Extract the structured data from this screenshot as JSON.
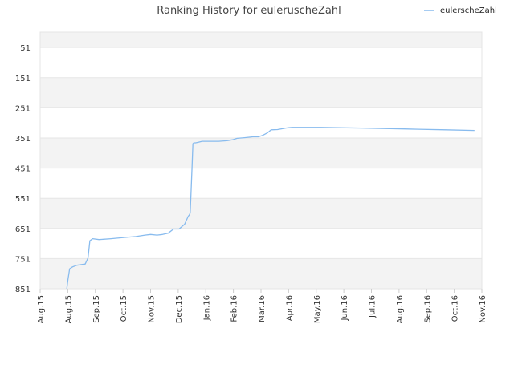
{
  "chart_data": {
    "type": "line",
    "title": "Ranking History for euleruscheZahl",
    "xlabel": "",
    "ylabel": "",
    "y_reversed": true,
    "ylim": [
      851,
      0
    ],
    "grid": true,
    "legend_position": "top-right",
    "band_colors": [
      "#f3f3f3",
      "#ffffff"
    ],
    "y_ticks": [
      51,
      151,
      251,
      351,
      451,
      551,
      651,
      751,
      851
    ],
    "y_tick_labels": [
      "51",
      "151",
      "251",
      "351",
      "451",
      "551",
      "651",
      "751",
      "851"
    ],
    "x_ticks": [
      "2015-08-01",
      "2015-08-31",
      "2015-09-30",
      "2015-10-30",
      "2015-11-29",
      "2015-12-29",
      "2016-01-28",
      "2016-02-27",
      "2016-03-28",
      "2016-04-27",
      "2016-05-27",
      "2016-06-26",
      "2016-07-26",
      "2016-08-25",
      "2016-09-24",
      "2016-10-24",
      "2016-11-23"
    ],
    "x_tick_labels": [
      "Aug.15",
      "Aug.15",
      "Sep.15",
      "Oct.15",
      "Nov.15",
      "Dec.15",
      "Jan.16",
      "Feb.16",
      "Mar.16",
      "Apr.16",
      "May.16",
      "Jun.16",
      "Jul.16",
      "Aug.16",
      "Sep.16",
      "Oct.16",
      "Nov.16"
    ],
    "series": [
      {
        "name": "eulerscheZahl",
        "color": "#88bbee",
        "x": [
          "2015-08-30",
          "2015-08-31",
          "2015-09-02",
          "2015-09-05",
          "2015-09-10",
          "2015-09-19",
          "2015-09-22",
          "2015-09-24",
          "2015-09-27",
          "2015-10-04",
          "2015-10-17",
          "2015-10-31",
          "2015-11-13",
          "2015-11-23",
          "2015-11-29",
          "2015-12-06",
          "2015-12-12",
          "2015-12-18",
          "2015-12-24",
          "2015-12-28",
          "2015-12-30",
          "2016-01-05",
          "2016-01-09",
          "2016-01-10",
          "2016-01-11",
          "2016-01-12",
          "2016-01-13",
          "2016-01-14",
          "2016-01-15",
          "2016-01-16",
          "2016-01-17",
          "2016-01-20",
          "2016-01-24",
          "2016-01-28",
          "2016-02-11",
          "2016-02-20",
          "2016-02-26",
          "2016-03-02",
          "2016-03-10",
          "2016-03-19",
          "2016-03-25",
          "2016-03-30",
          "2016-04-04",
          "2016-04-08",
          "2016-04-15",
          "2016-04-24",
          "2016-04-27",
          "2016-05-01",
          "2016-05-15",
          "2016-06-01",
          "2016-06-20",
          "2016-07-15",
          "2016-08-15",
          "2016-09-15",
          "2016-10-15",
          "2016-11-15"
        ],
        "y": [
          851,
          825,
          785,
          779,
          773,
          769,
          749,
          692,
          685,
          688,
          685,
          681,
          678,
          673,
          671,
          673,
          671,
          667,
          653,
          653,
          653,
          637,
          610,
          607,
          600,
          530,
          450,
          370,
          367,
          367,
          367,
          365,
          362,
          362,
          362,
          360,
          357,
          352,
          350,
          347,
          347,
          342,
          334,
          324,
          323,
          318,
          317,
          316,
          316,
          316,
          317,
          318,
          320,
          322,
          324,
          326
        ]
      }
    ]
  }
}
